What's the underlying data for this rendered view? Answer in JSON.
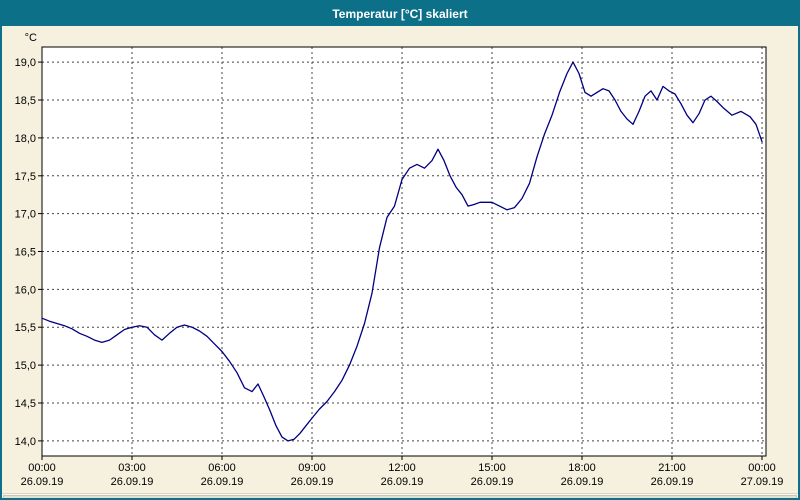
{
  "window": {
    "title": "Temperatur [°C] skaliert"
  },
  "colors": {
    "titlebar_bg": "#0c7089",
    "titlebar_text": "#ffffff",
    "window_bg": "#f5f1de",
    "plot_bg": "#ffffff",
    "grid": "#444444",
    "axis": "#000000",
    "line": "#000080"
  },
  "chart_data": {
    "type": "line",
    "title": "Temperatur [°C] skaliert",
    "unit_label": "°C",
    "grid": true,
    "legend": "none",
    "x_axis": {
      "range_hours": [
        0,
        24
      ],
      "major_tick_hours": 3,
      "ticks": [
        {
          "hour": 0,
          "time": "00:00",
          "date": "26.09.19"
        },
        {
          "hour": 3,
          "time": "03:00",
          "date": "26.09.19"
        },
        {
          "hour": 6,
          "time": "06:00",
          "date": "26.09.19"
        },
        {
          "hour": 9,
          "time": "09:00",
          "date": "26.09.19"
        },
        {
          "hour": 12,
          "time": "12:00",
          "date": "26.09.19"
        },
        {
          "hour": 15,
          "time": "15:00",
          "date": "26.09.19"
        },
        {
          "hour": 18,
          "time": "18:00",
          "date": "26.09.19"
        },
        {
          "hour": 21,
          "time": "21:00",
          "date": "26.09.19"
        },
        {
          "hour": 24,
          "time": "00:00",
          "date": "27.09.19"
        }
      ]
    },
    "y_axis": {
      "min": 13.8,
      "max": 19.2,
      "step": 0.5,
      "ticks": [
        {
          "value": 19.0,
          "label": "19,0"
        },
        {
          "value": 18.5,
          "label": "18,5"
        },
        {
          "value": 18.0,
          "label": "18,0"
        },
        {
          "value": 17.5,
          "label": "17,5"
        },
        {
          "value": 17.0,
          "label": "17,0"
        },
        {
          "value": 16.5,
          "label": "16,5"
        },
        {
          "value": 16.0,
          "label": "16,0"
        },
        {
          "value": 15.5,
          "label": "15,5"
        },
        {
          "value": 15.0,
          "label": "15,0"
        },
        {
          "value": 14.5,
          "label": "14,5"
        },
        {
          "value": 14.0,
          "label": "14,0"
        }
      ]
    },
    "series": [
      {
        "name": "Temperatur",
        "color": "#000080",
        "points": [
          [
            0,
            15.62
          ],
          [
            0.25,
            15.58
          ],
          [
            0.5,
            15.55
          ],
          [
            0.75,
            15.52
          ],
          [
            1,
            15.48
          ],
          [
            1.25,
            15.42
          ],
          [
            1.5,
            15.38
          ],
          [
            1.75,
            15.33
          ],
          [
            2,
            15.3
          ],
          [
            2.25,
            15.33
          ],
          [
            2.5,
            15.4
          ],
          [
            2.75,
            15.47
          ],
          [
            3,
            15.5
          ],
          [
            3.25,
            15.52
          ],
          [
            3.5,
            15.5
          ],
          [
            3.75,
            15.4
          ],
          [
            4,
            15.33
          ],
          [
            4.25,
            15.42
          ],
          [
            4.5,
            15.5
          ],
          [
            4.75,
            15.53
          ],
          [
            5,
            15.5
          ],
          [
            5.25,
            15.45
          ],
          [
            5.5,
            15.38
          ],
          [
            5.75,
            15.28
          ],
          [
            6,
            15.18
          ],
          [
            6.25,
            15.05
          ],
          [
            6.5,
            14.9
          ],
          [
            6.75,
            14.7
          ],
          [
            7,
            14.65
          ],
          [
            7.2,
            14.75
          ],
          [
            7.4,
            14.58
          ],
          [
            7.6,
            14.4
          ],
          [
            7.8,
            14.2
          ],
          [
            8,
            14.05
          ],
          [
            8.2,
            14.0
          ],
          [
            8.4,
            14.02
          ],
          [
            8.6,
            14.1
          ],
          [
            8.8,
            14.2
          ],
          [
            9,
            14.3
          ],
          [
            9.25,
            14.42
          ],
          [
            9.5,
            14.52
          ],
          [
            9.75,
            14.65
          ],
          [
            10,
            14.8
          ],
          [
            10.25,
            15.0
          ],
          [
            10.5,
            15.25
          ],
          [
            10.75,
            15.55
          ],
          [
            11,
            15.95
          ],
          [
            11.25,
            16.55
          ],
          [
            11.5,
            16.95
          ],
          [
            11.75,
            17.1
          ],
          [
            12,
            17.45
          ],
          [
            12.25,
            17.6
          ],
          [
            12.5,
            17.65
          ],
          [
            12.75,
            17.6
          ],
          [
            13,
            17.7
          ],
          [
            13.2,
            17.85
          ],
          [
            13.4,
            17.7
          ],
          [
            13.6,
            17.5
          ],
          [
            13.8,
            17.35
          ],
          [
            14,
            17.25
          ],
          [
            14.2,
            17.1
          ],
          [
            14.4,
            17.12
          ],
          [
            14.6,
            17.15
          ],
          [
            14.8,
            17.15
          ],
          [
            15,
            17.15
          ],
          [
            15.25,
            17.1
          ],
          [
            15.5,
            17.05
          ],
          [
            15.75,
            17.08
          ],
          [
            16,
            17.2
          ],
          [
            16.25,
            17.4
          ],
          [
            16.5,
            17.75
          ],
          [
            16.75,
            18.05
          ],
          [
            17,
            18.3
          ],
          [
            17.25,
            18.6
          ],
          [
            17.5,
            18.85
          ],
          [
            17.7,
            19.0
          ],
          [
            17.9,
            18.85
          ],
          [
            18.1,
            18.6
          ],
          [
            18.3,
            18.55
          ],
          [
            18.5,
            18.6
          ],
          [
            18.7,
            18.65
          ],
          [
            18.9,
            18.62
          ],
          [
            19.1,
            18.5
          ],
          [
            19.3,
            18.35
          ],
          [
            19.5,
            18.25
          ],
          [
            19.7,
            18.18
          ],
          [
            19.9,
            18.35
          ],
          [
            20.1,
            18.55
          ],
          [
            20.3,
            18.62
          ],
          [
            20.5,
            18.5
          ],
          [
            20.7,
            18.68
          ],
          [
            20.9,
            18.62
          ],
          [
            21.1,
            18.58
          ],
          [
            21.3,
            18.45
          ],
          [
            21.5,
            18.3
          ],
          [
            21.7,
            18.2
          ],
          [
            21.9,
            18.32
          ],
          [
            22.1,
            18.5
          ],
          [
            22.3,
            18.55
          ],
          [
            22.5,
            18.48
          ],
          [
            22.7,
            18.4
          ],
          [
            23,
            18.3
          ],
          [
            23.3,
            18.35
          ],
          [
            23.6,
            18.28
          ],
          [
            23.8,
            18.18
          ],
          [
            24,
            17.95
          ]
        ]
      }
    ]
  }
}
